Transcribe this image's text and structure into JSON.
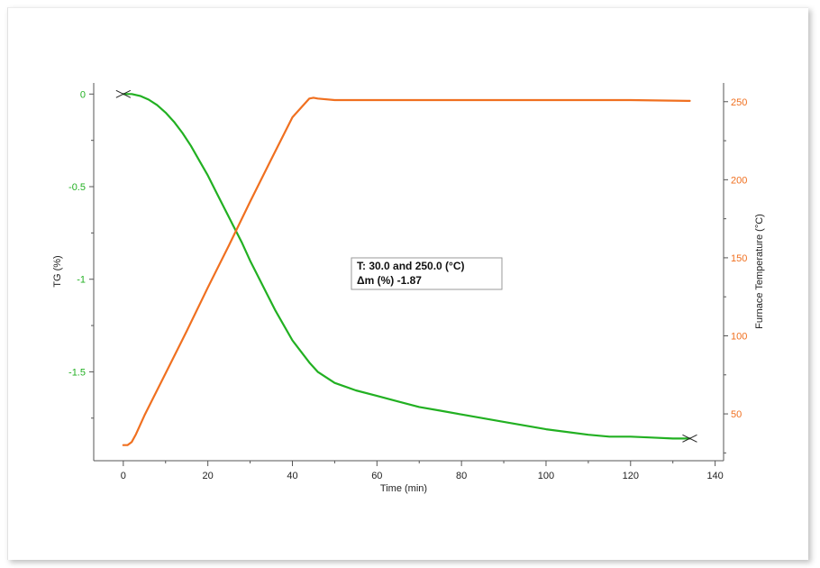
{
  "chart_data": {
    "type": "line",
    "title": "",
    "xlabel": "Time (min)",
    "ylabel_left": "TG (%)",
    "ylabel_right": "Furnace Temperature (°C)",
    "xlim": [
      -7,
      142
    ],
    "ylim_left": [
      -1.98,
      0.06
    ],
    "ylim_right": [
      20,
      262
    ],
    "x_ticks": [
      0,
      20,
      40,
      60,
      80,
      100,
      120,
      140
    ],
    "x_tick_labels": [
      "0",
      "20",
      "40",
      "60",
      "80",
      "100",
      "120",
      "140"
    ],
    "left_ticks": [
      0,
      -0.5,
      -1,
      -1.5
    ],
    "left_tick_labels": [
      "0",
      "-0.5",
      "-1",
      "-1.5"
    ],
    "right_ticks": [
      250,
      200,
      150,
      100,
      50
    ],
    "right_tick_labels": [
      "250",
      "200",
      "150",
      "100",
      "50"
    ],
    "colors": {
      "tg": "#22b022",
      "temperature": "#f07020",
      "axis": "#555555"
    },
    "series": [
      {
        "axis": "left",
        "x": [
          0,
          2,
          4,
          6,
          8,
          10,
          12,
          14,
          16,
          18,
          20,
          22,
          24,
          26,
          28,
          30,
          32,
          34,
          36,
          38,
          40,
          42,
          44,
          46,
          48,
          50,
          55,
          60,
          65,
          70,
          75,
          80,
          90,
          100,
          110,
          115,
          120,
          125,
          130,
          134
        ],
        "y": [
          0,
          0,
          -0.01,
          -0.03,
          -0.06,
          -0.1,
          -0.15,
          -0.21,
          -0.28,
          -0.36,
          -0.44,
          -0.53,
          -0.62,
          -0.71,
          -0.8,
          -0.9,
          -0.99,
          -1.08,
          -1.17,
          -1.25,
          -1.33,
          -1.39,
          -1.45,
          -1.5,
          -1.53,
          -1.56,
          -1.6,
          -1.63,
          -1.66,
          -1.69,
          -1.71,
          -1.73,
          -1.77,
          -1.81,
          -1.84,
          -1.85,
          -1.85,
          -1.855,
          -1.86,
          -1.86
        ]
      },
      {
        "axis": "right",
        "x": [
          0,
          1,
          2,
          3,
          4,
          5,
          10,
          15,
          20,
          25,
          30,
          35,
          40,
          44,
          45,
          46,
          50,
          60,
          80,
          100,
          120,
          134
        ],
        "y": [
          30,
          30,
          32,
          37,
          43,
          49,
          76,
          103,
          131,
          158,
          186,
          213,
          240,
          252,
          252.5,
          252,
          251,
          251,
          251,
          251,
          251,
          250.5
        ]
      }
    ],
    "markers": [
      {
        "x": 0,
        "y": 0,
        "axis": "left"
      },
      {
        "x": 134,
        "y": -1.86,
        "axis": "left"
      }
    ],
    "annotation": {
      "line1": "T: 30.0 and 250.0 (°C)",
      "line2": "Δm (%) -1.87"
    },
    "grid": false
  }
}
